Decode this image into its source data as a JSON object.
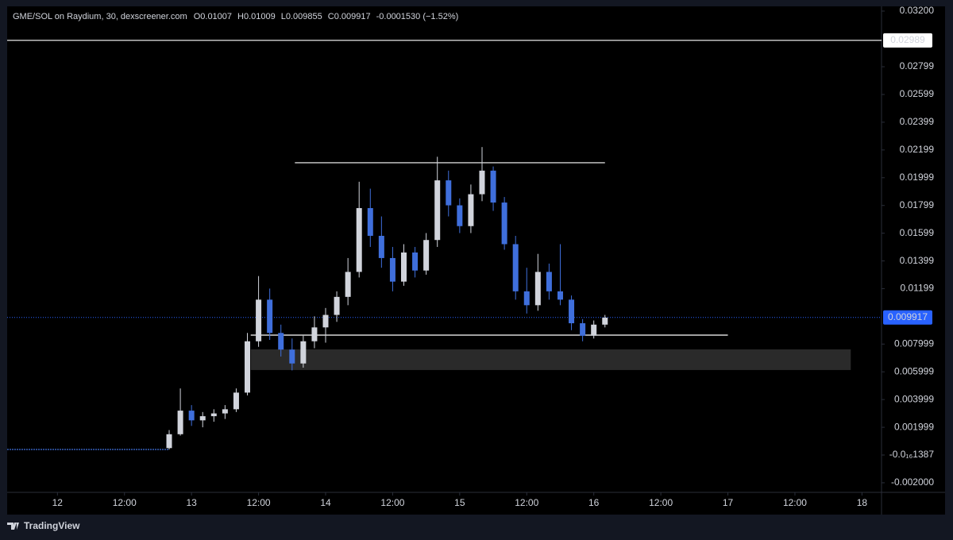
{
  "header": {
    "symbol": "GME/SOL on Raydium, 30, dexscreener.com",
    "ohlc": [
      {
        "key": "O",
        "value": "0.01007"
      },
      {
        "key": "H",
        "value": "0.01009"
      },
      {
        "key": "L",
        "value": "0.009855"
      },
      {
        "key": "C",
        "value": "0.009917"
      }
    ],
    "change": "-0.0001530 (−1.52%)"
  },
  "chart_data": {
    "type": "candlestick",
    "up_color": "#d1d4dc",
    "down_color": "#3f6fdc",
    "xlim": [
      -9,
      147.5
    ],
    "xticks": [
      {
        "value": 0,
        "label": "12"
      },
      {
        "value": 12,
        "label": "12:00"
      },
      {
        "value": 24,
        "label": "13"
      },
      {
        "value": 36,
        "label": "12:00"
      },
      {
        "value": 48,
        "label": "14"
      },
      {
        "value": 60,
        "label": "12:00"
      },
      {
        "value": 72,
        "label": "15"
      },
      {
        "value": 84,
        "label": "12:00"
      },
      {
        "value": 96,
        "label": "16"
      },
      {
        "value": 108,
        "label": "12:00"
      },
      {
        "value": 120,
        "label": "17"
      },
      {
        "value": 132,
        "label": "12:00"
      },
      {
        "value": 144,
        "label": "18"
      }
    ],
    "ylim": [
      -0.00269,
      0.0328
    ],
    "yticks": [
      {
        "value": 0.032,
        "label": "0.03200"
      },
      0.02799,
      0.02599,
      0.02399,
      0.02199,
      0.01999,
      0.01799,
      0.01599,
      0.01399,
      0.01199,
      0.007999,
      0.005999,
      0.003999,
      0.001999,
      {
        "value": -1.387e-17,
        "label": "-0.0₁₆1387"
      },
      {
        "value": -0.002,
        "label": "-0.002000"
      }
    ],
    "x": [
      20,
      22,
      24,
      26,
      28,
      30,
      32,
      34,
      36,
      38,
      40,
      42,
      44,
      46,
      48,
      50,
      52,
      54,
      56,
      58,
      60,
      62,
      64,
      66,
      68,
      70,
      72,
      74,
      76,
      78,
      80,
      82,
      84,
      86,
      88,
      90,
      92,
      94,
      96,
      98
    ],
    "open": [
      0.0005,
      0.0015,
      0.0032,
      0.0025,
      0.0028,
      0.003,
      0.0033,
      0.0045,
      0.0082,
      0.0112,
      0.0088,
      0.0076,
      0.0066,
      0.0082,
      0.0092,
      0.0101,
      0.0114,
      0.0132,
      0.0178,
      0.0158,
      0.0142,
      0.0125,
      0.0146,
      0.0133,
      0.0155,
      0.0198,
      0.018,
      0.0165,
      0.0188,
      0.0205,
      0.0182,
      0.0152,
      0.0118,
      0.0108,
      0.0132,
      0.0118,
      0.0112,
      0.0095,
      0.0086,
      0.0094
    ],
    "high": [
      0.0018,
      0.0048,
      0.0036,
      0.0031,
      0.0033,
      0.0036,
      0.0048,
      0.0088,
      0.0129,
      0.012,
      0.0094,
      0.0084,
      0.0086,
      0.01,
      0.0106,
      0.0118,
      0.0142,
      0.0197,
      0.0192,
      0.0172,
      0.015,
      0.0152,
      0.015,
      0.016,
      0.0215,
      0.0205,
      0.0185,
      0.0195,
      0.0222,
      0.0208,
      0.0186,
      0.0158,
      0.0135,
      0.0145,
      0.0138,
      0.0152,
      0.0115,
      0.0098,
      0.0097,
      0.0101
    ],
    "low": [
      0.0004,
      0.0014,
      0.0021,
      0.002,
      0.0024,
      0.0026,
      0.0031,
      0.0043,
      0.0078,
      0.0083,
      0.0071,
      0.0061,
      0.0063,
      0.0077,
      0.0081,
      0.0096,
      0.0108,
      0.0128,
      0.015,
      0.0135,
      0.0118,
      0.0122,
      0.0128,
      0.013,
      0.015,
      0.0172,
      0.016,
      0.016,
      0.0183,
      0.0176,
      0.0148,
      0.0112,
      0.0102,
      0.0104,
      0.0112,
      0.0108,
      0.009,
      0.0082,
      0.0084,
      0.0092
    ],
    "close": [
      0.0015,
      0.0032,
      0.0025,
      0.0028,
      0.003,
      0.0033,
      0.0045,
      0.0082,
      0.0112,
      0.0088,
      0.0076,
      0.0066,
      0.0082,
      0.0092,
      0.0101,
      0.0114,
      0.0132,
      0.0178,
      0.0158,
      0.0142,
      0.0125,
      0.0146,
      0.0133,
      0.0155,
      0.0198,
      0.018,
      0.0165,
      0.0188,
      0.0205,
      0.0182,
      0.0152,
      0.0118,
      0.0108,
      0.0132,
      0.0118,
      0.0112,
      0.0095,
      0.0086,
      0.0094,
      0.0099
    ],
    "pre_line": {
      "x": [
        -9,
        20
      ],
      "values": [
        0.0004,
        0.0004
      ],
      "color": "#3f6fdc"
    },
    "lines": [
      {
        "x": [
          -9,
          147.5
        ],
        "y": 0.02989,
        "color": "#ffffff"
      },
      {
        "x": [
          42.5,
          98
        ],
        "y": 0.02107,
        "color": "#ffffff"
      },
      {
        "x": [
          34.6,
          120
        ],
        "y": 0.008645,
        "color": "#ffffff"
      }
    ],
    "zone": {
      "x": [
        34.6,
        142
      ],
      "y": [
        0.006127,
        0.007615
      ],
      "color": "#2a2a2a"
    },
    "price_line": {
      "value": 0.009917,
      "color": "#2962ff"
    },
    "price_tags": [
      {
        "value": 0.02989,
        "bg": "#ffffff",
        "fg": "#000000"
      },
      {
        "value": 0.009917,
        "bg": "#2962ff",
        "fg": "#ffffff"
      }
    ]
  },
  "footer": {
    "brand": "TradingView"
  }
}
